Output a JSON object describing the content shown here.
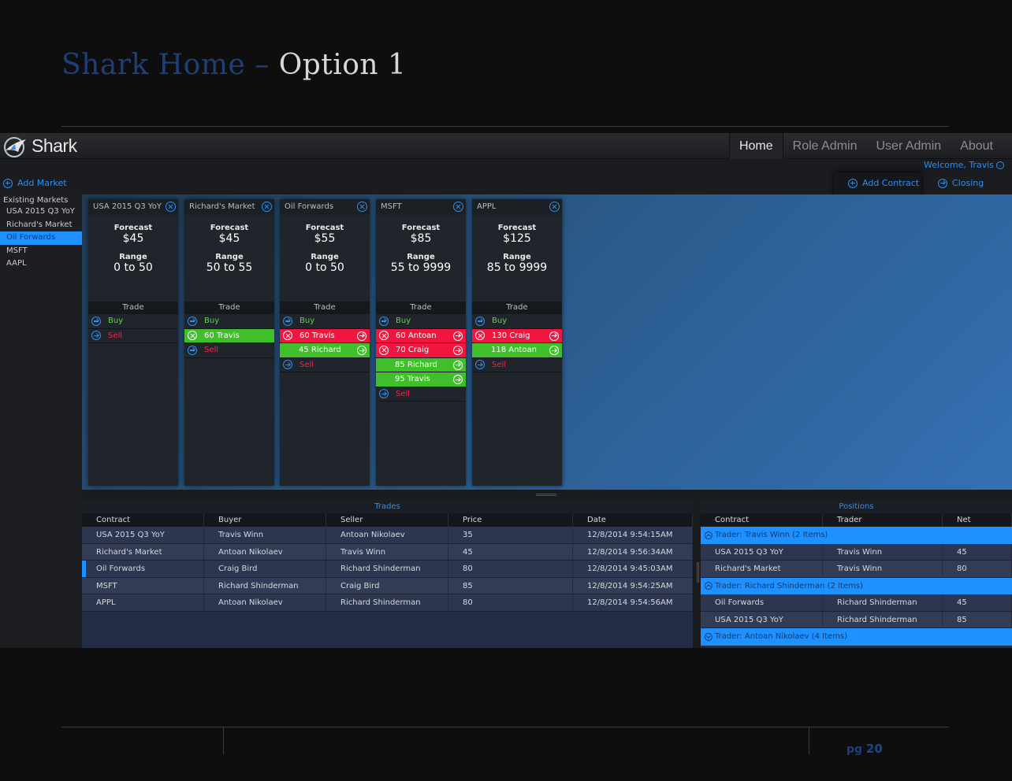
{
  "slide": {
    "title_part1": "Shark Home – ",
    "title_part2": "Option 1",
    "page_label": "pg",
    "page_number": "20"
  },
  "app": {
    "logo_text": "Shark",
    "nav": [
      "Home",
      "Role Admin",
      "User Admin",
      "About"
    ],
    "welcome": "Welcome, Travis",
    "toolbar": {
      "add_market": "Add Market",
      "add_contract": "Add Contract",
      "closing": "Closing"
    }
  },
  "sidebar": {
    "heading": "Existing Markets",
    "items": [
      "USA 2015 Q3 YoY",
      "Richard's Market",
      "Oil Forwards",
      "MSFT",
      "AAPL"
    ],
    "selected_index": 2
  },
  "markets": [
    {
      "name": "USA 2015 Q3 YoY",
      "forecast_label": "Forecast",
      "forecast": "$45",
      "range_label": "Range",
      "range": "0 to 50",
      "trade_label": "Trade",
      "rows": [
        {
          "type": "buy",
          "label": "Buy"
        },
        {
          "type": "sell",
          "label": "Sell"
        }
      ]
    },
    {
      "name": "Richard's Market",
      "forecast_label": "Forecast",
      "forecast": "$45",
      "range_label": "Range",
      "range": "50 to 55",
      "trade_label": "Trade",
      "rows": [
        {
          "type": "buy",
          "label": "Buy"
        },
        {
          "type": "green-own",
          "label": "60 Travis"
        },
        {
          "type": "sell",
          "label": "Sell"
        }
      ]
    },
    {
      "name": "Oil Forwards",
      "forecast_label": "Forecast",
      "forecast": "$55",
      "range_label": "Range",
      "range": "0 to 50",
      "trade_label": "Trade",
      "rows": [
        {
          "type": "buy",
          "label": "Buy"
        },
        {
          "type": "red",
          "label": "60 Travis"
        },
        {
          "type": "green",
          "label": "45 Richard"
        },
        {
          "type": "sell",
          "label": "Sell"
        }
      ]
    },
    {
      "name": "MSFT",
      "forecast_label": "Forecast",
      "forecast": "$85",
      "range_label": "Range",
      "range": "55 to 9999",
      "trade_label": "Trade",
      "rows": [
        {
          "type": "buy",
          "label": "Buy"
        },
        {
          "type": "red",
          "label": "60 Antoan"
        },
        {
          "type": "red",
          "label": "70 Craig"
        },
        {
          "type": "green",
          "label": "85 Richard"
        },
        {
          "type": "green",
          "label": "95 Travis"
        },
        {
          "type": "sell",
          "label": "Sell"
        }
      ]
    },
    {
      "name": "APPL",
      "forecast_label": "Forecast",
      "forecast": "$125",
      "range_label": "Range",
      "range": "85 to 9999",
      "trade_label": "Trade",
      "rows": [
        {
          "type": "buy",
          "label": "Buy"
        },
        {
          "type": "red",
          "label": "130 Craig"
        },
        {
          "type": "green",
          "label": "118 Antoan"
        },
        {
          "type": "sell",
          "label": "Sell"
        }
      ]
    }
  ],
  "trades": {
    "title": "Trades",
    "columns": [
      "Contract",
      "Buyer",
      "Seller",
      "Price",
      "Date"
    ],
    "rows": [
      [
        "USA 2015 Q3 YoY",
        "Travis Winn",
        "Antoan Nikolaev",
        "35",
        "12/8/2014 9:54:15AM"
      ],
      [
        "Richard's Market",
        "Antoan Nikolaev",
        "Travis Winn",
        "45",
        "12/8/2014 9:56:34AM"
      ],
      [
        "Oil Forwards",
        "Craig Bird",
        "Richard Shinderman",
        "80",
        "12/8/2014 9:45:03AM"
      ],
      [
        "MSFT",
        "Richard Shinderman",
        "Craig Bird",
        "85",
        "12/8/2014 9:54:25AM"
      ],
      [
        "APPL",
        "Antoan Nikolaev",
        "Richard Shinderman",
        "80",
        "12/8/2014 9:54:56AM"
      ]
    ],
    "selected_index": 2
  },
  "positions": {
    "title": "Positions",
    "columns": [
      "Contract",
      "Trader",
      "Net"
    ],
    "groups": [
      {
        "label": "Trader: Travis Winn (2 Items)",
        "expanded": true,
        "rows": [
          [
            "USA 2015 Q3 YoY",
            "Travis Winn",
            "45"
          ],
          [
            "Richard's Market",
            "Travis Winn",
            "80"
          ]
        ]
      },
      {
        "label": "Trader: Richard Shinderman (2 Items)",
        "expanded": true,
        "rows": [
          [
            "Oil Forwards",
            "Richard Shinderman",
            "45"
          ],
          [
            "USA 2015 Q3 YoY",
            "Richard Shinderman",
            "85"
          ]
        ]
      },
      {
        "label": "Trader: Antoan Nikolaev  (4 Items)",
        "expanded": false,
        "rows": []
      }
    ]
  },
  "colors": {
    "accent": "#2e8ff0",
    "buy": "#57d947",
    "sell": "#ff1f4a",
    "order_red": "#f0163f",
    "order_green": "#3fbf2a",
    "selection": "#1e90ff"
  }
}
